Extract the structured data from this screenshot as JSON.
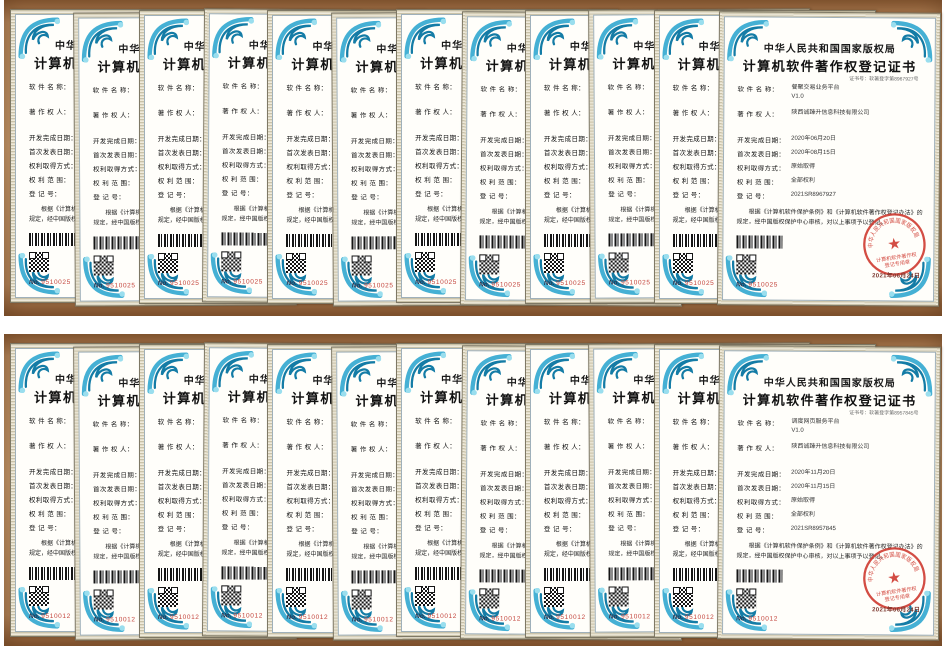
{
  "colors": {
    "panel_brown": "#b08255",
    "ornament_teal": "#45b0d4",
    "seal_red": "#cf3a30",
    "serial_red": "#c4463e"
  },
  "labels": {
    "authority": "中华人民共和国国家版权局",
    "title": "计算机软件著作权登记证书",
    "fields": [
      "软 件 名 称：",
      "著 作 权 人：",
      "开发完成日期：",
      "首次发表日期：",
      "权利取得方式：",
      "权 利 范 围：",
      "登  记  号："
    ],
    "statement": "根据《计算机软件保护条例》和《计算机软件著作权登记办法》的规定，经中国版权保护中心审核，对以上事项予以登记。",
    "serial_prefix": "No.",
    "seal_ring_text": "中华人民共和国国家版权局",
    "seal_star": "★",
    "seal_center_line1": "计算机软件著作权",
    "seal_center_line2": "登记专用章"
  },
  "rows": [
    {
      "stack_count": 12,
      "certificate": {
        "cert_no_line": "证书号：软著登字第8967927号",
        "software_name": "餐聚交易业务平台",
        "version": "V1.0",
        "owner": "陕西诚臻升信息科技有限公司",
        "dev_complete_date": "2020年06月20日",
        "first_publish_date": "2020年08月15日",
        "rights_acquisition": "原始取得",
        "rights_scope": "全部权利",
        "registration_no": "2021SR8967927",
        "serial_number": "9510025",
        "seal_date": "2021年06月24日"
      }
    },
    {
      "stack_count": 12,
      "certificate": {
        "cert_no_line": "证书号：软著登字第8957845号",
        "software_name": "调度网页服务平台",
        "version": "V1.0",
        "owner": "陕西诚臻升信息科技有限公司",
        "dev_complete_date": "2020年11月20日",
        "first_publish_date": "2020年11月15日",
        "rights_acquisition": "原始取得",
        "rights_scope": "全部权利",
        "registration_no": "2021SR8957845",
        "serial_number": "9510012",
        "seal_date": "2021年06月24日"
      }
    }
  ]
}
